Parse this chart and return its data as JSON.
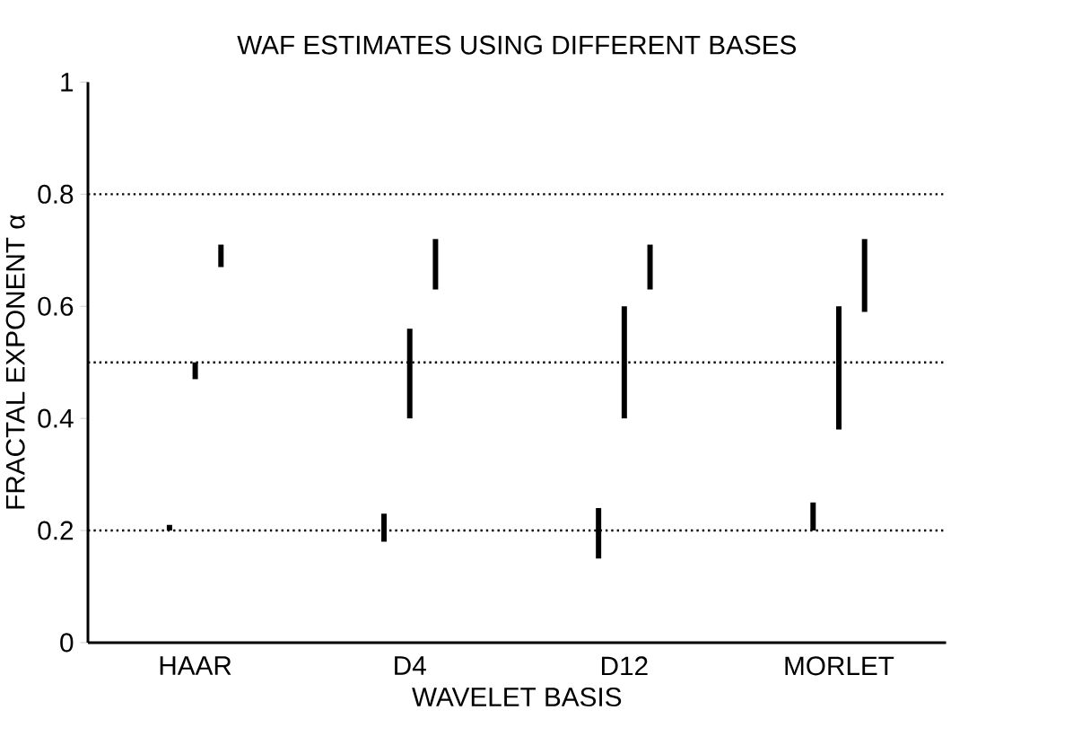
{
  "chart_data": {
    "type": "bar",
    "title": "WAF ESTIMATES USING DIFFERENT BASES",
    "xlabel": "WAVELET BASIS",
    "ylabel": "FRACTAL EXPONENT  α",
    "categories": [
      "HAAR",
      "D4",
      "D12",
      "MORLET"
    ],
    "series": [
      {
        "color": "#000000",
        "base": [
          0.2,
          0.18,
          0.15,
          0.2
        ],
        "values": [
          0.01,
          0.05,
          0.09,
          0.05
        ]
      },
      {
        "color": "#000000",
        "base": [
          0.47,
          0.4,
          0.4,
          0.38
        ],
        "values": [
          0.03,
          0.16,
          0.2,
          0.22
        ]
      },
      {
        "color": "#000000",
        "base": [
          0.67,
          0.63,
          0.63,
          0.59
        ],
        "values": [
          0.04,
          0.09,
          0.08,
          0.13
        ]
      }
    ],
    "ylim": [
      0,
      1
    ],
    "yticks": [
      0,
      0.2,
      0.4,
      0.6,
      0.8,
      1
    ],
    "ref_lines": [
      {
        "axis": "y",
        "value": 0.2,
        "line_style": "dotted"
      },
      {
        "axis": "y",
        "value": 0.5,
        "line_style": "dotted"
      },
      {
        "axis": "y",
        "value": 0.8,
        "line_style": "dotted"
      }
    ]
  }
}
